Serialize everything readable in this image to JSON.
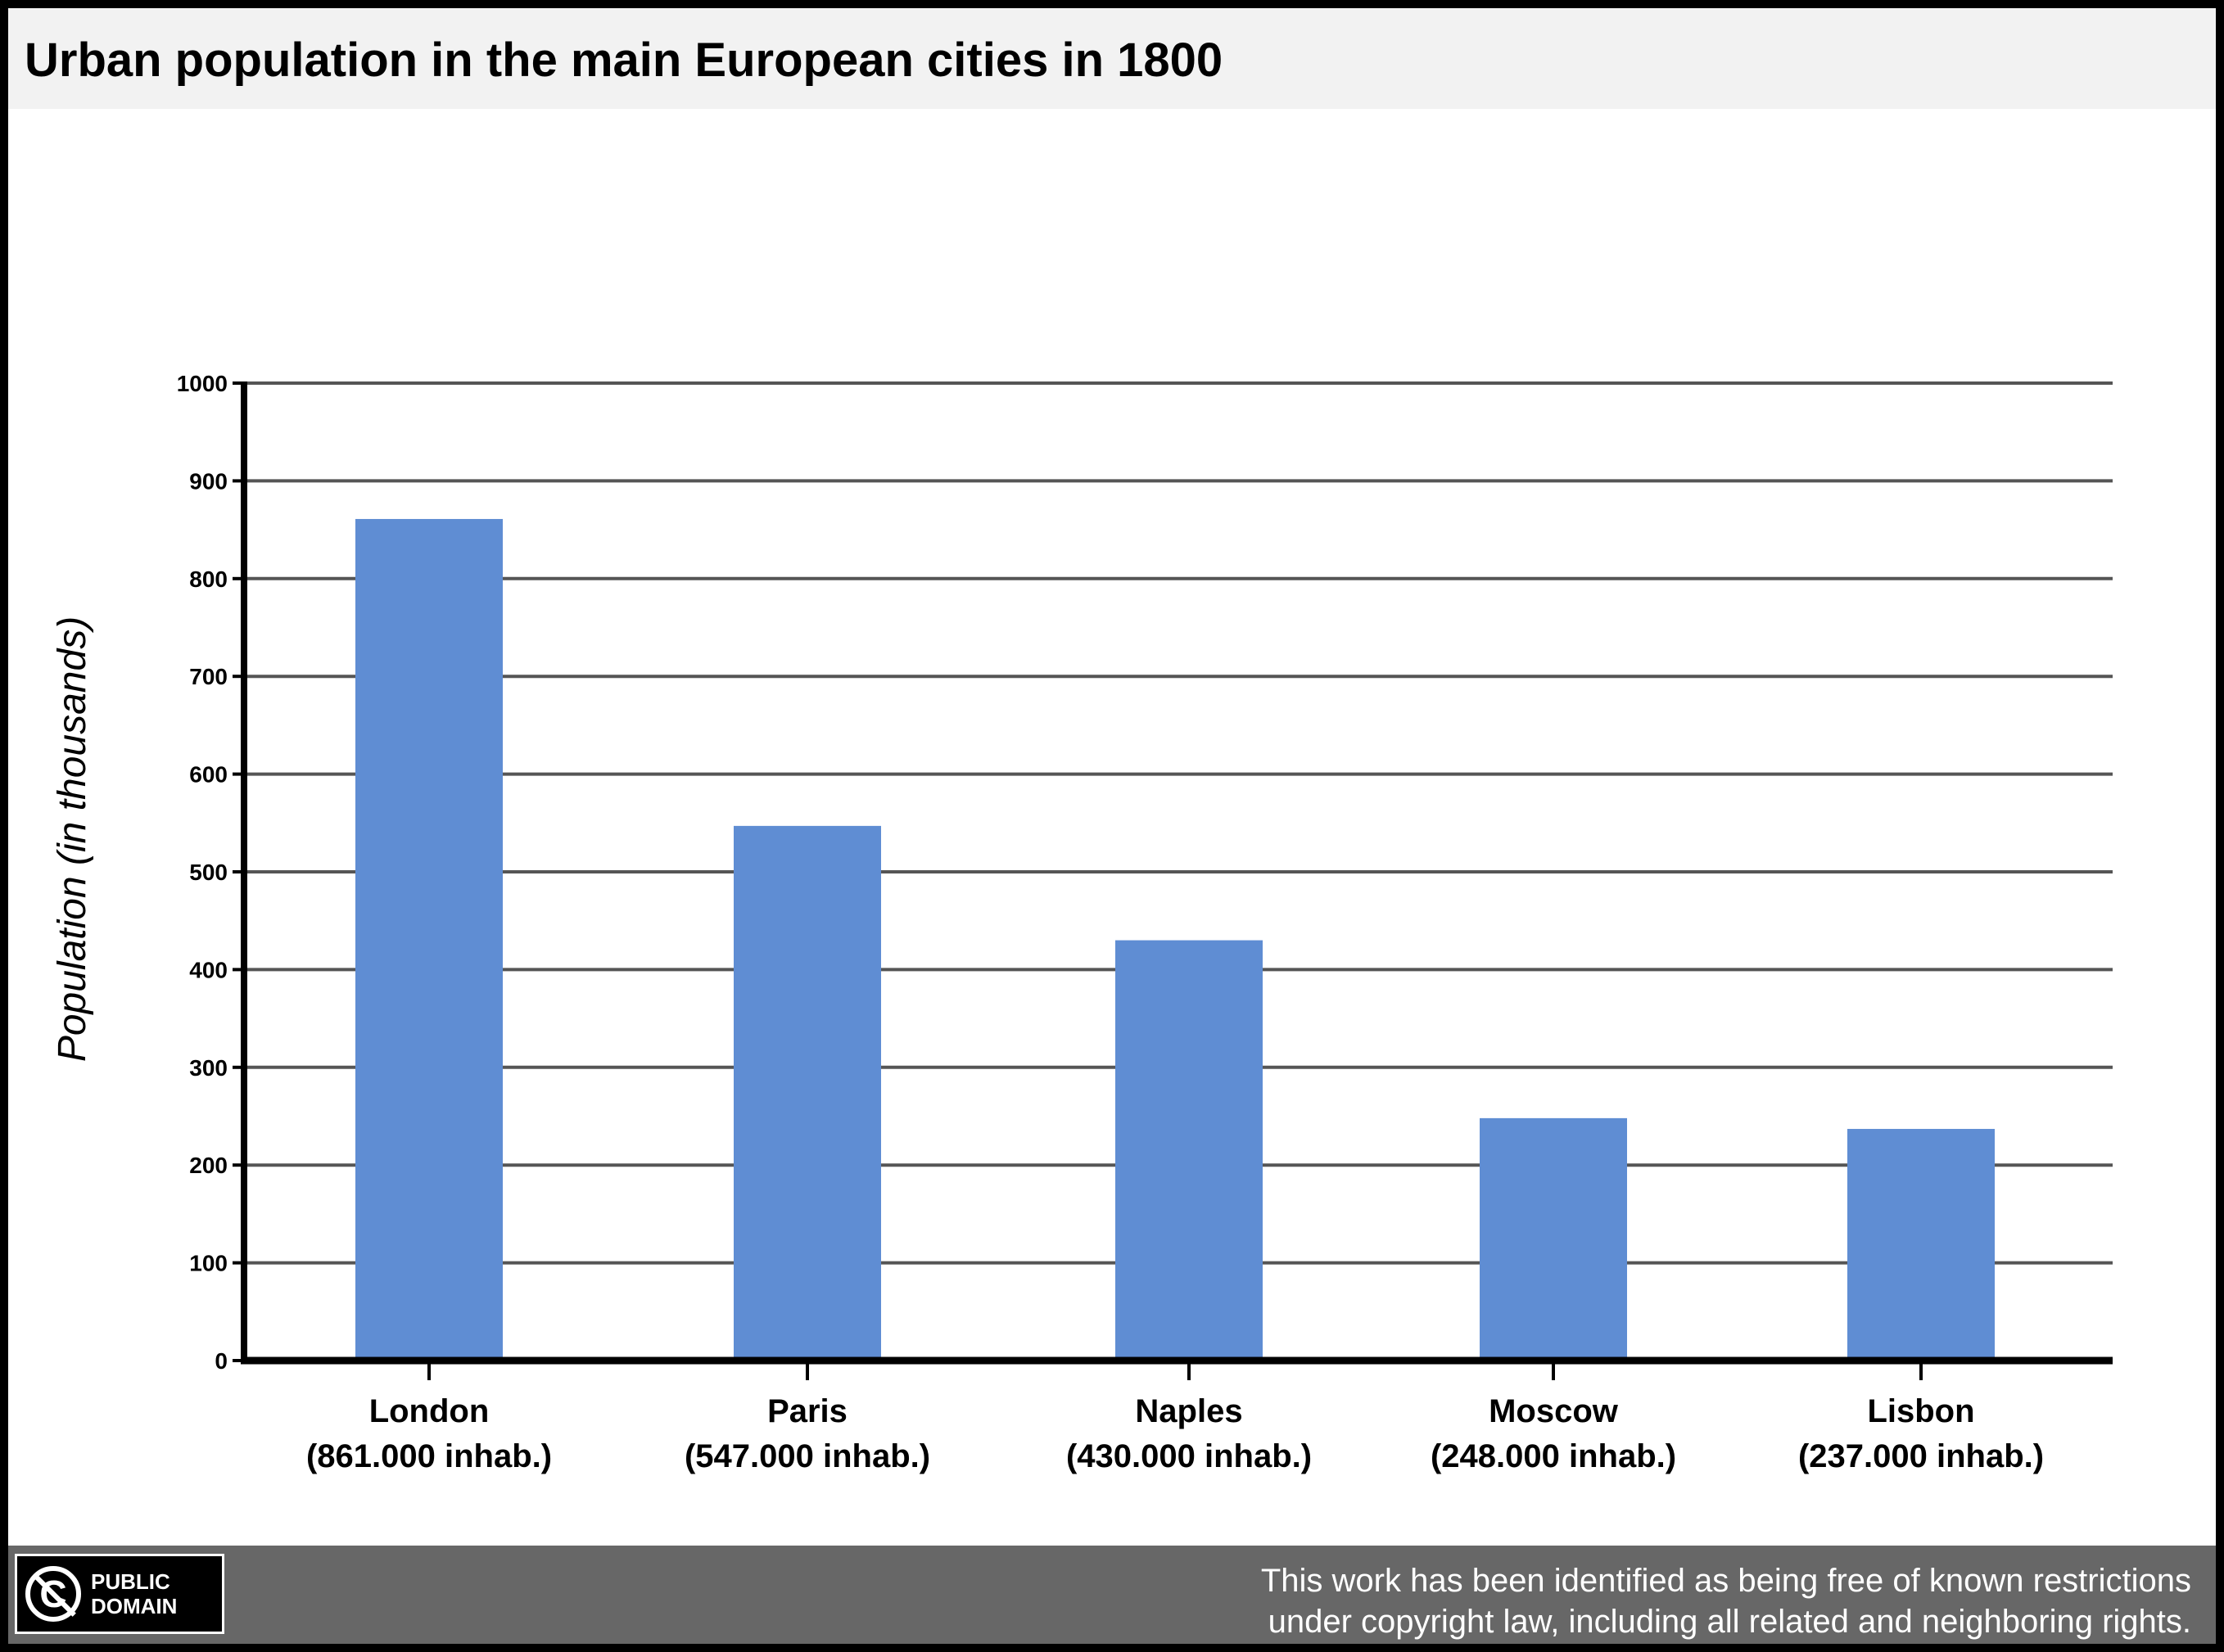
{
  "title": "Urban population in the main European cities in 1800",
  "footer": {
    "badge_line1": "PUBLIC",
    "badge_line2": "DOMAIN",
    "badge_icon": "public-domain-icon",
    "notice_line1": "This work has been identified as being free of known restrictions",
    "notice_line2": "under copyright law, including all related and neighboring rights."
  },
  "colors": {
    "bar": "#5f8dd3",
    "grid": "#555555",
    "title_bg": "#f2f2f2",
    "footer_bg": "#676767"
  },
  "chart_data": {
    "type": "bar",
    "title": "Urban population in the main European cities in 1800",
    "ylabel": "Population (in thousands)",
    "xlabel": "",
    "ylim": [
      0,
      1000
    ],
    "yticks": [
      0,
      100,
      200,
      300,
      400,
      500,
      600,
      700,
      800,
      900,
      1000
    ],
    "grid": true,
    "categories": [
      "London",
      "Paris",
      "Naples",
      "Moscow",
      "Lisbon"
    ],
    "category_sublabels": [
      "(861.000 inhab.)",
      "(547.000 inhab.)",
      "(430.000 inhab.)",
      "(248.000 inhab.)",
      "(237.000 inhab.)"
    ],
    "values": [
      861,
      547,
      430,
      248,
      237
    ]
  }
}
